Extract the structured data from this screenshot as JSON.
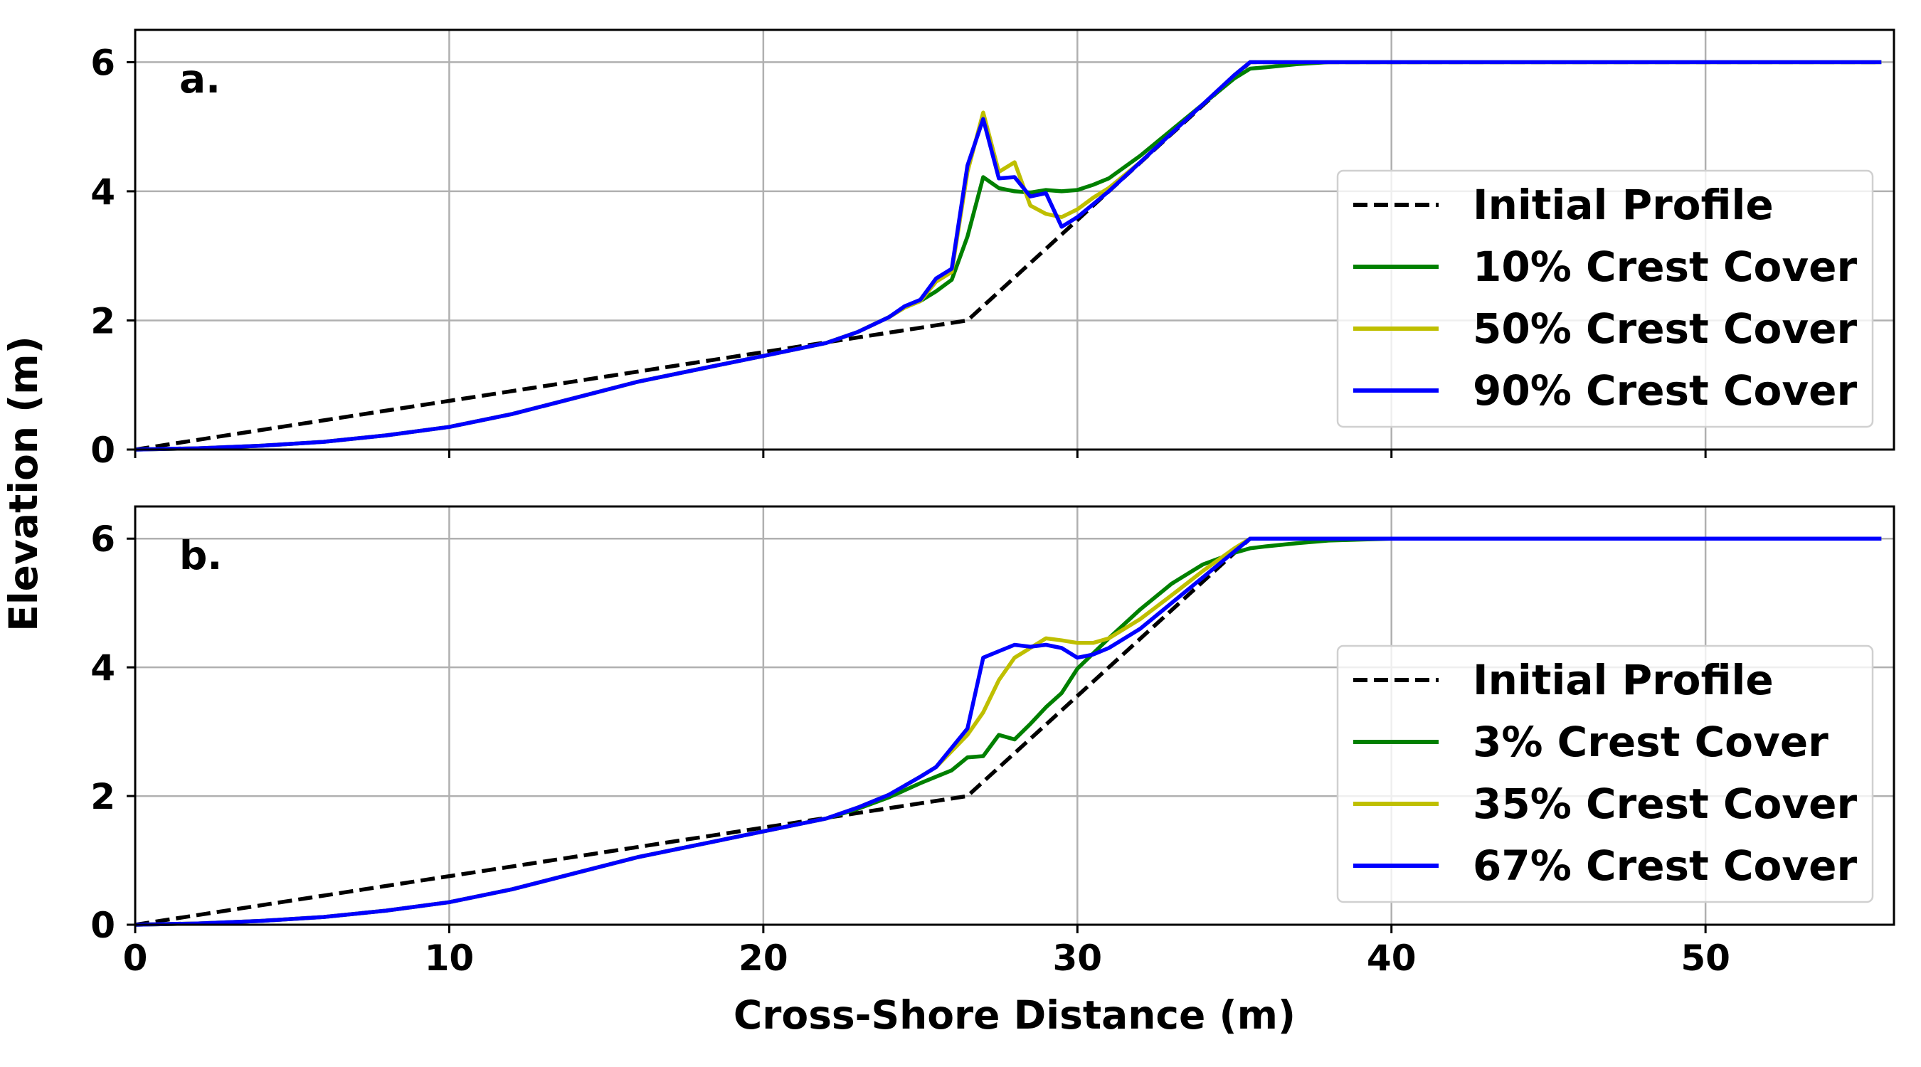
{
  "colors": {
    "initial": "#000000",
    "green": "#008000",
    "yellow": "#bfbf00",
    "blue": "#0000ff"
  },
  "chart_data": [
    {
      "type": "line",
      "panel_label": "a.",
      "xlabel": "",
      "ylabel": "Elevation (m)",
      "xlim": [
        0,
        56
      ],
      "ylim": [
        0,
        6.5
      ],
      "xticks": [
        0,
        10,
        20,
        30,
        40,
        50
      ],
      "yticks": [
        0,
        2,
        4,
        6
      ],
      "show_xtick_labels": false,
      "grid": true,
      "legend_position": "right",
      "series": [
        {
          "name": "Initial Profile",
          "color": "#000000",
          "dash": true,
          "x": [
            0,
            26.5,
            35.5,
            55.6
          ],
          "y": [
            0,
            2.0,
            6.0,
            6.0
          ]
        },
        {
          "name": "10% Crest Cover",
          "color": "#008000",
          "dash": false,
          "x": [
            0,
            2,
            4,
            6,
            8,
            10,
            12,
            14,
            16,
            18,
            20,
            22,
            23,
            24,
            24.5,
            25,
            25.5,
            26,
            26.5,
            27,
            27.5,
            28,
            28.5,
            29,
            29.5,
            30,
            30.5,
            31,
            32,
            33,
            34,
            35,
            35.5,
            36,
            37,
            38,
            40,
            45,
            50,
            55.6
          ],
          "y": [
            0,
            0.02,
            0.06,
            0.12,
            0.22,
            0.35,
            0.55,
            0.8,
            1.05,
            1.25,
            1.45,
            1.65,
            1.82,
            2.05,
            2.2,
            2.3,
            2.45,
            2.63,
            3.3,
            4.22,
            4.05,
            4.0,
            3.98,
            4.02,
            4.0,
            4.02,
            4.1,
            4.2,
            4.55,
            4.95,
            5.35,
            5.75,
            5.9,
            5.92,
            5.97,
            6.0,
            6.0,
            6.0,
            6.0,
            6.0
          ]
        },
        {
          "name": "50% Crest Cover",
          "color": "#bfbf00",
          "dash": false,
          "x": [
            0,
            2,
            4,
            6,
            8,
            10,
            12,
            14,
            16,
            18,
            20,
            22,
            23,
            24,
            24.5,
            25,
            25.5,
            26,
            26.5,
            27,
            27.5,
            28,
            28.5,
            29,
            29.5,
            30,
            30.5,
            31,
            32,
            33,
            34,
            35,
            35.5,
            36,
            37,
            38,
            40,
            45,
            50,
            55.6
          ],
          "y": [
            0,
            0.02,
            0.06,
            0.12,
            0.22,
            0.35,
            0.55,
            0.8,
            1.05,
            1.25,
            1.45,
            1.65,
            1.82,
            2.05,
            2.2,
            2.3,
            2.6,
            2.75,
            4.3,
            5.22,
            4.3,
            4.45,
            3.78,
            3.65,
            3.6,
            3.72,
            3.9,
            4.05,
            4.45,
            4.9,
            5.35,
            5.8,
            6.0,
            6.0,
            6.0,
            6.0,
            6.0,
            6.0,
            6.0,
            6.0
          ]
        },
        {
          "name": "90% Crest Cover",
          "color": "#0000ff",
          "dash": false,
          "x": [
            0,
            2,
            4,
            6,
            8,
            10,
            12,
            14,
            16,
            18,
            20,
            22,
            23,
            24,
            24.5,
            25,
            25.5,
            26,
            26.5,
            27,
            27.5,
            28,
            28.5,
            29,
            29.5,
            30,
            30.5,
            31,
            32,
            33,
            34,
            35,
            35.5,
            36,
            37,
            38,
            40,
            45,
            50,
            55.6
          ],
          "y": [
            0,
            0.02,
            0.06,
            0.12,
            0.22,
            0.35,
            0.55,
            0.8,
            1.05,
            1.25,
            1.45,
            1.65,
            1.82,
            2.05,
            2.22,
            2.32,
            2.65,
            2.8,
            4.4,
            5.12,
            4.2,
            4.22,
            3.92,
            3.97,
            3.45,
            3.6,
            3.8,
            4.0,
            4.45,
            4.9,
            5.35,
            5.8,
            6.0,
            6.0,
            6.0,
            6.0,
            6.0,
            6.0,
            6.0,
            6.0
          ]
        }
      ]
    },
    {
      "type": "line",
      "panel_label": "b.",
      "xlabel": "Cross-Shore Distance (m)",
      "ylabel": "",
      "xlim": [
        0,
        56
      ],
      "ylim": [
        0,
        6.5
      ],
      "xticks": [
        0,
        10,
        20,
        30,
        40,
        50
      ],
      "yticks": [
        0,
        2,
        4,
        6
      ],
      "show_xtick_labels": true,
      "grid": true,
      "legend_position": "lower right",
      "series": [
        {
          "name": "Initial Profile",
          "color": "#000000",
          "dash": true,
          "x": [
            0,
            26.5,
            35.5,
            55.6
          ],
          "y": [
            0,
            2.0,
            6.0,
            6.0
          ]
        },
        {
          "name": "3% Crest Cover",
          "color": "#008000",
          "dash": false,
          "x": [
            0,
            2,
            4,
            6,
            8,
            10,
            12,
            14,
            16,
            18,
            20,
            22,
            23,
            24,
            25,
            25.5,
            26,
            26.5,
            27,
            27.5,
            28,
            28.5,
            29,
            29.5,
            30,
            31,
            32,
            33,
            34,
            35,
            35.5,
            36,
            37,
            38,
            40,
            45,
            50,
            55.6
          ],
          "y": [
            0,
            0.02,
            0.06,
            0.12,
            0.22,
            0.35,
            0.55,
            0.8,
            1.05,
            1.25,
            1.45,
            1.65,
            1.8,
            1.98,
            2.2,
            2.3,
            2.4,
            2.6,
            2.62,
            2.95,
            2.88,
            3.12,
            3.38,
            3.6,
            3.98,
            4.45,
            4.9,
            5.3,
            5.6,
            5.78,
            5.85,
            5.88,
            5.93,
            5.97,
            6.0,
            6.0,
            6.0,
            6.0
          ]
        },
        {
          "name": "35% Crest Cover",
          "color": "#bfbf00",
          "dash": false,
          "x": [
            0,
            2,
            4,
            6,
            8,
            10,
            12,
            14,
            16,
            18,
            20,
            22,
            23,
            24,
            25,
            25.5,
            26,
            26.5,
            27,
            27.5,
            28,
            28.5,
            29,
            29.5,
            30,
            30.5,
            31,
            32,
            33,
            34,
            35,
            35.5,
            36,
            37,
            38,
            40,
            45,
            50,
            55.6
          ],
          "y": [
            0,
            0.02,
            0.06,
            0.12,
            0.22,
            0.35,
            0.55,
            0.8,
            1.05,
            1.25,
            1.45,
            1.65,
            1.82,
            2.02,
            2.3,
            2.45,
            2.7,
            2.95,
            3.3,
            3.8,
            4.15,
            4.3,
            4.45,
            4.42,
            4.38,
            4.38,
            4.45,
            4.75,
            5.12,
            5.5,
            5.85,
            6.0,
            6.0,
            6.0,
            6.0,
            6.0,
            6.0,
            6.0,
            6.0
          ]
        },
        {
          "name": "67% Crest Cover",
          "color": "#0000ff",
          "dash": false,
          "x": [
            0,
            2,
            4,
            6,
            8,
            10,
            12,
            14,
            16,
            18,
            20,
            22,
            23,
            24,
            25,
            25.5,
            26,
            26.5,
            27,
            27.5,
            28,
            28.5,
            29,
            29.5,
            30,
            30.5,
            31,
            32,
            33,
            34,
            35,
            35.5,
            36,
            37,
            38,
            40,
            45,
            50,
            55.6
          ],
          "y": [
            0,
            0.02,
            0.06,
            0.12,
            0.22,
            0.35,
            0.55,
            0.8,
            1.05,
            1.25,
            1.45,
            1.65,
            1.82,
            2.02,
            2.3,
            2.45,
            2.75,
            3.05,
            4.15,
            4.25,
            4.35,
            4.32,
            4.35,
            4.3,
            4.15,
            4.2,
            4.3,
            4.6,
            5.0,
            5.4,
            5.8,
            6.0,
            6.0,
            6.0,
            6.0,
            6.0,
            6.0,
            6.0,
            6.0
          ]
        }
      ]
    }
  ]
}
